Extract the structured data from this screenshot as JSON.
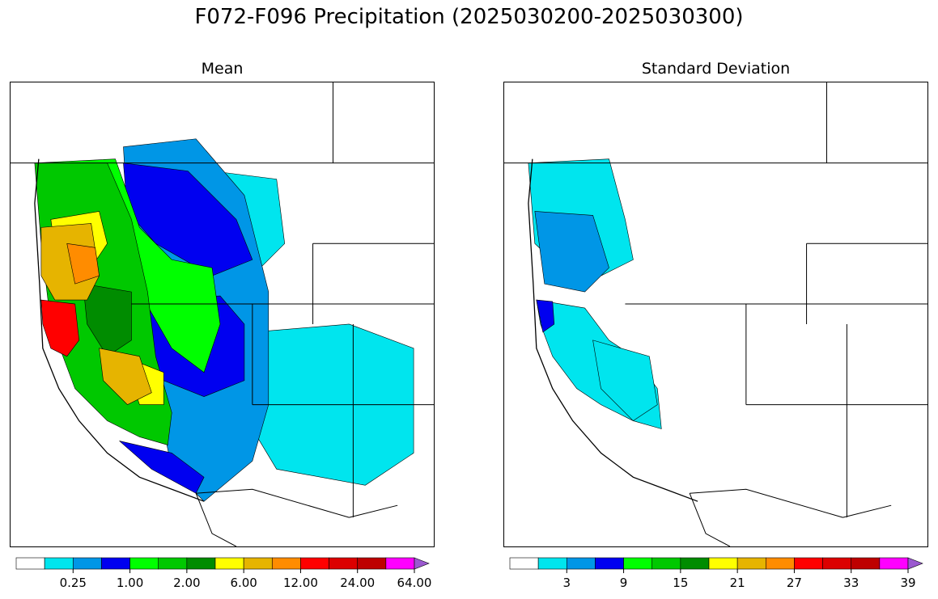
{
  "figure": {
    "title": "F072-F096 Precipitation (2025030200-2025030300)"
  },
  "panels": [
    {
      "id": "mean",
      "title": "Mean",
      "colorbar": {
        "colors": [
          "#ffffff",
          "#00e5ee",
          "#0096e6",
          "#0000f0",
          "#00ff00",
          "#00c800",
          "#008c00",
          "#ffff00",
          "#e6b400",
          "#ff8c00",
          "#ff0000",
          "#dc0000",
          "#be0000",
          "#ff00ff",
          "#9b59d0"
        ],
        "extend": "max",
        "tick_labels": [
          "0.25",
          "1.00",
          "2.00",
          "6.00",
          "12.00",
          "24.00",
          "64.00"
        ],
        "label_box_index": [
          1,
          3,
          5,
          7,
          9,
          11,
          13
        ]
      }
    },
    {
      "id": "stdev",
      "title": "Standard Deviation",
      "colorbar": {
        "colors": [
          "#ffffff",
          "#00e5ee",
          "#0096e6",
          "#0000f0",
          "#00ff00",
          "#00c800",
          "#008c00",
          "#ffff00",
          "#e6b400",
          "#ff8c00",
          "#ff0000",
          "#dc0000",
          "#be0000",
          "#ff00ff",
          "#9b59d0"
        ],
        "extend": "max",
        "tick_labels": [
          "3",
          "9",
          "15",
          "21",
          "27",
          "33",
          "39"
        ],
        "label_box_index": [
          1,
          3,
          5,
          7,
          9,
          11,
          13
        ]
      }
    }
  ]
}
